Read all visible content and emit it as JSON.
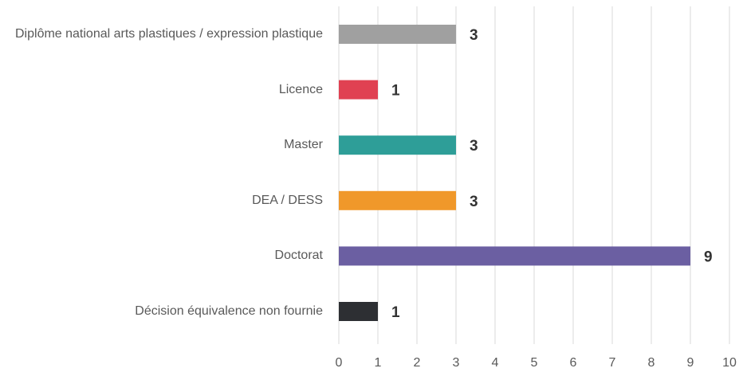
{
  "chart_data": {
    "type": "bar",
    "orientation": "horizontal",
    "categories": [
      "Diplôme national arts plastiques / expression plastique",
      "Licence",
      "Master",
      "DEA / DESS",
      "Doctorat",
      "Décision équivalence non fournie"
    ],
    "values": [
      3,
      1,
      3,
      3,
      9,
      1
    ],
    "colors": [
      "#a0a0a0",
      "#e04152",
      "#2e9e98",
      "#f0982a",
      "#6b5fa2",
      "#2d2f33"
    ],
    "xlim": [
      0,
      10
    ],
    "xticks": [
      0,
      1,
      2,
      3,
      4,
      5,
      6,
      7,
      8,
      9,
      10
    ],
    "grid": true
  }
}
